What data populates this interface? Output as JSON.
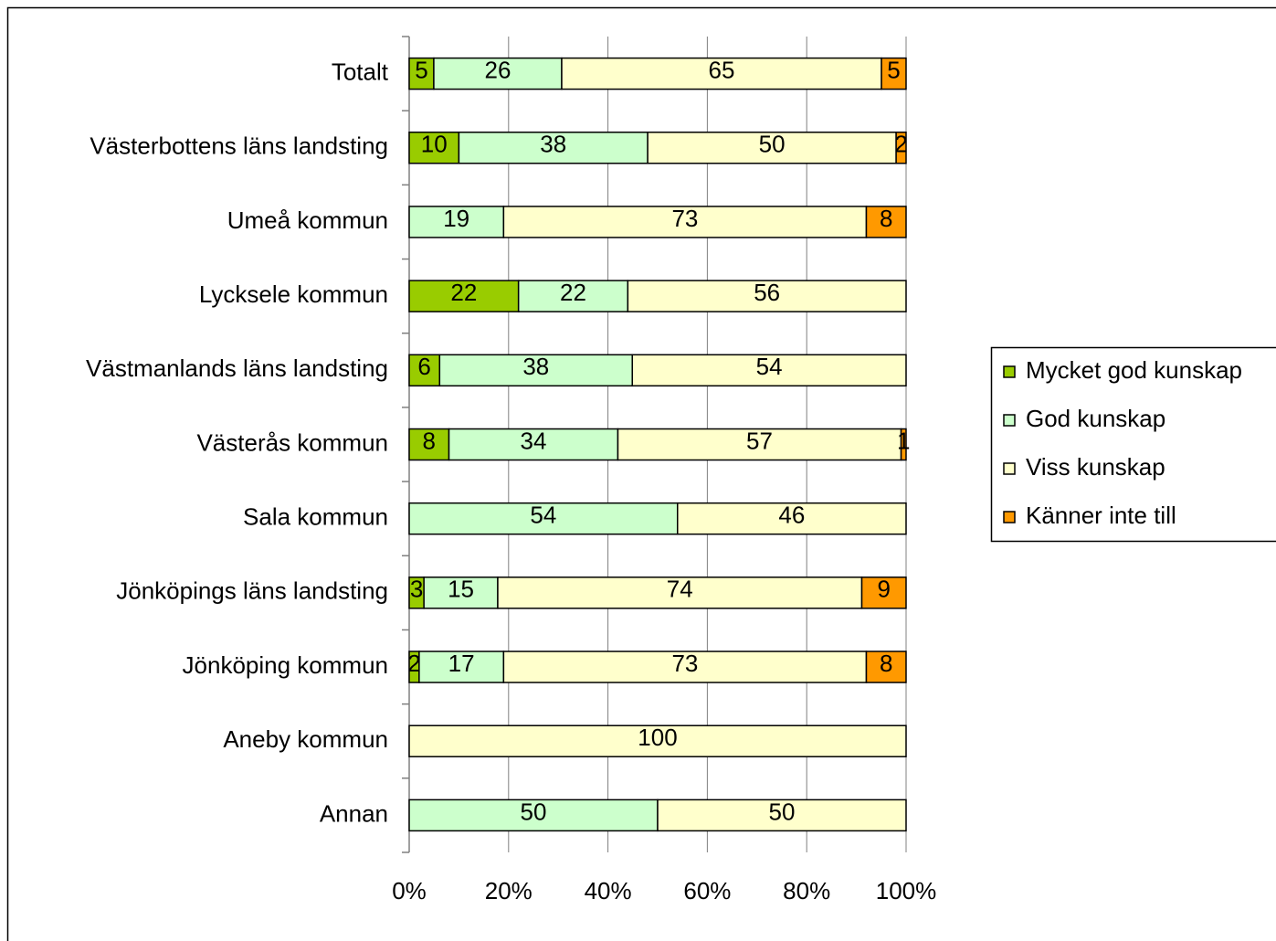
{
  "chart_data": {
    "type": "bar",
    "orientation": "horizontal",
    "stacking": "percent",
    "categories": [
      "Totalt",
      "Västerbottens läns landsting",
      "Umeå kommun",
      "Lycksele kommun",
      "Västmanlands läns landsting",
      "Västerås kommun",
      "Sala kommun",
      "Jönköpings läns landsting",
      "Jönköping kommun",
      "Aneby kommun",
      "Annan"
    ],
    "series": [
      {
        "name": "Mycket god kunskap",
        "color": "#99cc00",
        "values": [
          5,
          10,
          null,
          22,
          6,
          8,
          null,
          3,
          2,
          null,
          null
        ]
      },
      {
        "name": "God kunskap",
        "color": "#ccffcc",
        "values": [
          26,
          38,
          19,
          22,
          38,
          34,
          54,
          15,
          17,
          null,
          50
        ]
      },
      {
        "name": "Viss kunskap",
        "color": "#ffffcc",
        "values": [
          65,
          50,
          73,
          56,
          54,
          57,
          46,
          74,
          73,
          100,
          50
        ]
      },
      {
        "name": "Känner inte till",
        "color": "#ff9900",
        "values": [
          5,
          2,
          8,
          null,
          null,
          1,
          null,
          9,
          8,
          null,
          null
        ]
      }
    ],
    "xlim": [
      0,
      100
    ],
    "xticks": [
      {
        "value": 0,
        "label": "0%"
      },
      {
        "value": 20,
        "label": "20%"
      },
      {
        "value": 40,
        "label": "40%"
      },
      {
        "value": 60,
        "label": "60%"
      },
      {
        "value": 80,
        "label": "80%"
      },
      {
        "value": 100,
        "label": "100%"
      }
    ],
    "grid": true,
    "legend": "right"
  }
}
